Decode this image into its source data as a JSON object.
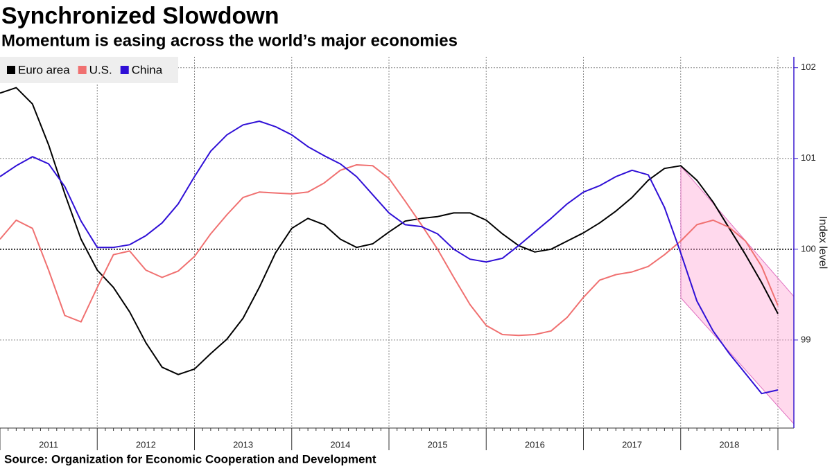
{
  "chart_data": {
    "type": "line",
    "title": "Synchronized Slowdown",
    "subtitle": "Momentum is easing across the world’s major economies",
    "source": "Source: Organization for Economic Cooperation and Development",
    "y_axis_label": "Index level",
    "categories": [
      null,
      null,
      null,
      "2011",
      null,
      null,
      null,
      null,
      null,
      "2012",
      null,
      null,
      null,
      null,
      null,
      "2013",
      null,
      null,
      null,
      null,
      null,
      "2014",
      null,
      null,
      null,
      null,
      null,
      "2015",
      null,
      null,
      null,
      null,
      null,
      "2016",
      null,
      null,
      null,
      null,
      null,
      "2017",
      null,
      null,
      null,
      null,
      null,
      "2018",
      null,
      null,
      null
    ],
    "series": [
      {
        "name": "Euro area",
        "color": "#000000",
        "values": [
          101.72,
          101.78,
          101.6,
          101.15,
          100.61,
          100.11,
          99.77,
          99.58,
          99.31,
          98.97,
          98.7,
          98.62,
          98.68,
          98.85,
          99.01,
          99.24,
          99.58,
          99.96,
          100.23,
          100.34,
          100.27,
          100.11,
          100.02,
          100.06,
          100.19,
          100.31,
          100.34,
          100.36,
          100.4,
          100.4,
          100.32,
          100.17,
          100.04,
          99.97,
          100.0,
          100.09,
          100.18,
          100.29,
          100.42,
          100.57,
          100.76,
          100.89,
          100.92,
          100.76,
          100.52,
          100.23,
          99.94,
          99.63,
          99.29
        ]
      },
      {
        "name": "U.S.",
        "color": "#f07070",
        "values": [
          100.11,
          100.32,
          100.23,
          99.77,
          99.27,
          99.2,
          99.58,
          99.94,
          99.98,
          99.77,
          99.69,
          99.76,
          99.92,
          100.17,
          100.38,
          100.57,
          100.63,
          100.62,
          100.61,
          100.63,
          100.73,
          100.87,
          100.93,
          100.92,
          100.78,
          100.53,
          100.27,
          100.0,
          99.69,
          99.39,
          99.16,
          99.06,
          99.05,
          99.06,
          99.1,
          99.25,
          99.47,
          99.66,
          99.72,
          99.75,
          99.81,
          99.94,
          100.09,
          100.27,
          100.32,
          100.24,
          100.09,
          99.81,
          99.38
        ]
      },
      {
        "name": "China",
        "color": "#2f0fd6",
        "values": [
          100.8,
          100.92,
          101.02,
          100.94,
          100.69,
          100.31,
          100.02,
          100.02,
          100.05,
          100.15,
          100.29,
          100.5,
          100.8,
          101.08,
          101.26,
          101.37,
          101.41,
          101.35,
          101.26,
          101.13,
          101.03,
          100.94,
          100.8,
          100.6,
          100.4,
          100.27,
          100.25,
          100.17,
          100.0,
          99.89,
          99.86,
          99.9,
          100.04,
          100.19,
          100.34,
          100.5,
          100.63,
          100.7,
          100.8,
          100.87,
          100.82,
          100.46,
          99.96,
          99.43,
          99.1,
          98.85,
          98.63,
          98.41,
          98.45
        ]
      }
    ],
    "ylim": [
      98.03,
      102.12
    ],
    "yticks": [
      99,
      100,
      101,
      102
    ],
    "reference_line": 100,
    "grid": true,
    "legend": "top-left"
  }
}
